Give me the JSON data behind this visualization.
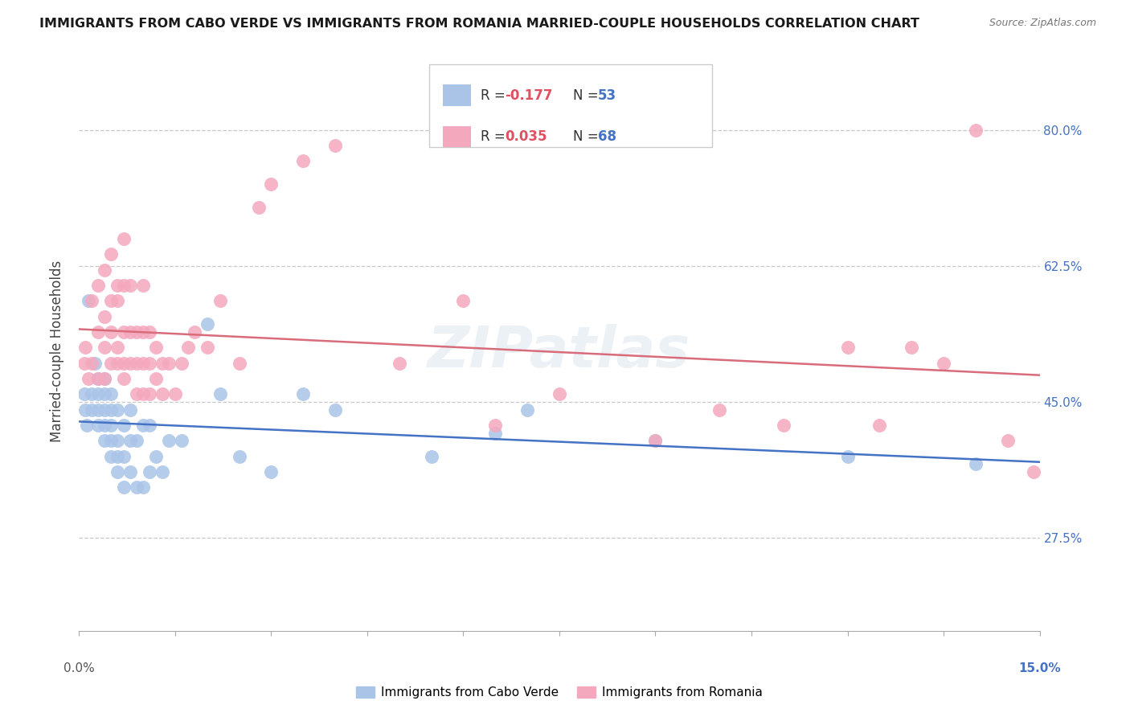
{
  "title": "IMMIGRANTS FROM CABO VERDE VS IMMIGRANTS FROM ROMANIA MARRIED-COUPLE HOUSEHOLDS CORRELATION CHART",
  "source": "Source: ZipAtlas.com",
  "ylabel_label": "Married-couple Households",
  "legend_label_blue": "Immigrants from Cabo Verde",
  "legend_label_pink": "Immigrants from Romania",
  "color_blue": "#aac4e8",
  "color_pink": "#f4a8be",
  "line_color_blue": "#4472c4",
  "line_color_pink": "#d96c7b",
  "background_color": "#ffffff",
  "grid_color": "#c8c8c8",
  "ytick_vals": [
    0.275,
    0.45,
    0.625,
    0.8
  ],
  "ytick_labels": [
    "27.5%",
    "45.0%",
    "62.5%",
    "80.0%"
  ],
  "cabo_verde_x": [
    0.0008,
    0.001,
    0.0012,
    0.0015,
    0.002,
    0.002,
    0.0025,
    0.003,
    0.003,
    0.003,
    0.003,
    0.004,
    0.004,
    0.004,
    0.004,
    0.004,
    0.005,
    0.005,
    0.005,
    0.005,
    0.005,
    0.006,
    0.006,
    0.006,
    0.006,
    0.007,
    0.007,
    0.007,
    0.008,
    0.008,
    0.008,
    0.009,
    0.009,
    0.01,
    0.01,
    0.011,
    0.011,
    0.012,
    0.013,
    0.014,
    0.016,
    0.02,
    0.022,
    0.025,
    0.03,
    0.035,
    0.04,
    0.055,
    0.065,
    0.07,
    0.09,
    0.12,
    0.14
  ],
  "cabo_verde_y": [
    0.46,
    0.44,
    0.42,
    0.58,
    0.44,
    0.46,
    0.5,
    0.42,
    0.44,
    0.46,
    0.48,
    0.4,
    0.42,
    0.44,
    0.46,
    0.48,
    0.38,
    0.4,
    0.42,
    0.44,
    0.46,
    0.36,
    0.38,
    0.4,
    0.44,
    0.34,
    0.38,
    0.42,
    0.36,
    0.4,
    0.44,
    0.34,
    0.4,
    0.34,
    0.42,
    0.36,
    0.42,
    0.38,
    0.36,
    0.4,
    0.4,
    0.55,
    0.46,
    0.38,
    0.36,
    0.46,
    0.44,
    0.38,
    0.41,
    0.44,
    0.4,
    0.38,
    0.37
  ],
  "romania_x": [
    0.0008,
    0.001,
    0.0015,
    0.002,
    0.002,
    0.003,
    0.003,
    0.003,
    0.004,
    0.004,
    0.004,
    0.004,
    0.005,
    0.005,
    0.005,
    0.005,
    0.006,
    0.006,
    0.006,
    0.006,
    0.007,
    0.007,
    0.007,
    0.007,
    0.007,
    0.008,
    0.008,
    0.008,
    0.009,
    0.009,
    0.009,
    0.01,
    0.01,
    0.01,
    0.01,
    0.011,
    0.011,
    0.011,
    0.012,
    0.012,
    0.013,
    0.013,
    0.014,
    0.015,
    0.016,
    0.017,
    0.018,
    0.02,
    0.022,
    0.025,
    0.028,
    0.03,
    0.035,
    0.04,
    0.05,
    0.06,
    0.065,
    0.075,
    0.09,
    0.1,
    0.11,
    0.12,
    0.125,
    0.13,
    0.135,
    0.14,
    0.145,
    0.149
  ],
  "romania_y": [
    0.5,
    0.52,
    0.48,
    0.5,
    0.58,
    0.48,
    0.54,
    0.6,
    0.48,
    0.52,
    0.56,
    0.62,
    0.5,
    0.54,
    0.58,
    0.64,
    0.5,
    0.52,
    0.58,
    0.6,
    0.48,
    0.5,
    0.54,
    0.6,
    0.66,
    0.5,
    0.54,
    0.6,
    0.46,
    0.5,
    0.54,
    0.46,
    0.5,
    0.54,
    0.6,
    0.46,
    0.5,
    0.54,
    0.48,
    0.52,
    0.46,
    0.5,
    0.5,
    0.46,
    0.5,
    0.52,
    0.54,
    0.52,
    0.58,
    0.5,
    0.7,
    0.73,
    0.76,
    0.78,
    0.5,
    0.58,
    0.42,
    0.46,
    0.4,
    0.44,
    0.42,
    0.52,
    0.42,
    0.52,
    0.5,
    0.8,
    0.4,
    0.36
  ]
}
